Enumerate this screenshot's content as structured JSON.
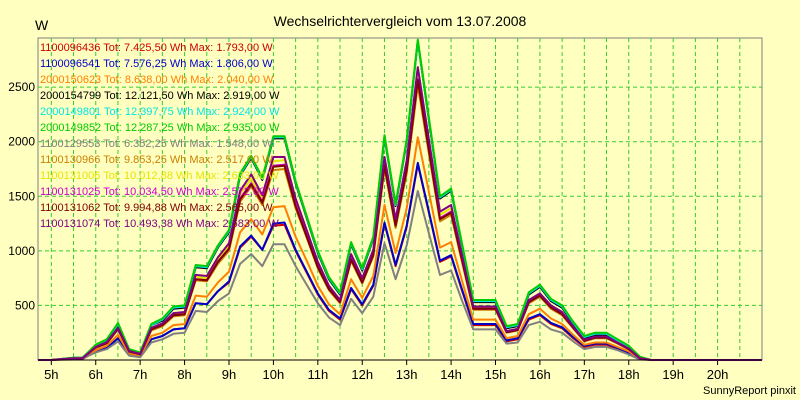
{
  "chart_data": {
    "type": "line",
    "title": "Wechselrichtervergleich vom 13.07.2008",
    "ylabel": "W",
    "xlabel": "",
    "footer": "SunnyReport pinxit",
    "x_tick_labels": [
      "5h",
      "6h",
      "7h",
      "8h",
      "9h",
      "10h",
      "11h",
      "12h",
      "13h",
      "14h",
      "15h",
      "16h",
      "17h",
      "18h",
      "19h",
      "20h"
    ],
    "y_ticks": [
      500,
      1000,
      1500,
      2000,
      2500
    ],
    "xlim": [
      4.7,
      21.0
    ],
    "ylim": [
      0,
      2950
    ],
    "grid": true,
    "legend_position": "top-left",
    "colors": {
      "background": "#ffffc0",
      "plot_border": "#808080",
      "grid": "#33cc33",
      "axis": "#000000"
    },
    "x": [
      4.7,
      5.0,
      5.5,
      5.7,
      6.0,
      6.25,
      6.5,
      6.75,
      7.0,
      7.25,
      7.5,
      7.75,
      8.0,
      8.25,
      8.5,
      8.75,
      9.0,
      9.25,
      9.5,
      9.75,
      10.0,
      10.25,
      10.5,
      10.75,
      11.0,
      11.25,
      11.5,
      11.75,
      12.0,
      12.25,
      12.5,
      12.75,
      13.0,
      13.25,
      13.5,
      13.75,
      14.0,
      14.25,
      14.5,
      14.75,
      15.0,
      15.25,
      15.5,
      15.75,
      16.0,
      16.25,
      16.5,
      16.75,
      17.0,
      17.25,
      17.5,
      17.75,
      18.0,
      18.25,
      18.5,
      18.75,
      19.0,
      19.25,
      19.5,
      19.75,
      20.0,
      20.25,
      20.5,
      20.75,
      21.0
    ],
    "series": [
      {
        "name": "1100096436 Tot: 7.425,50 Wh Max: 1.793,00 W",
        "color": "#cc0000",
        "values": [
          0,
          0,
          10,
          10,
          80,
          110,
          200,
          50,
          30,
          190,
          220,
          280,
          290,
          520,
          510,
          630,
          710,
          1030,
          1130,
          1010,
          1230,
          1240,
          1000,
          800,
          600,
          450,
          370,
          650,
          500,
          680,
          1250,
          860,
          1220,
          1793,
          1350,
          900,
          950,
          630,
          320,
          320,
          320,
          170,
          190,
          370,
          410,
          330,
          290,
          200,
          120,
          140,
          140,
          100,
          60,
          10,
          0,
          0,
          0,
          0,
          0,
          0,
          0,
          0,
          0,
          0,
          0
        ]
      },
      {
        "name": "1100096541 Tot: 7.576,25 Wh Max: 1.806,00 W",
        "color": "#0000cc",
        "values": [
          0,
          0,
          10,
          10,
          80,
          110,
          200,
          50,
          30,
          190,
          220,
          280,
          290,
          520,
          510,
          630,
          720,
          1040,
          1140,
          1010,
          1250,
          1260,
          1010,
          810,
          610,
          460,
          380,
          660,
          510,
          690,
          1260,
          870,
          1230,
          1806,
          1360,
          910,
          960,
          640,
          330,
          330,
          330,
          180,
          200,
          380,
          420,
          340,
          300,
          210,
          130,
          150,
          150,
          110,
          70,
          10,
          0,
          0,
          0,
          0,
          0,
          0,
          0,
          0,
          0,
          0,
          0
        ]
      },
      {
        "name": "2000150623 Tot: 8.638,00 Wh Max: 2.040,00 W",
        "color": "#ff8000",
        "values": [
          0,
          0,
          10,
          15,
          90,
          130,
          230,
          60,
          40,
          220,
          250,
          320,
          330,
          590,
          580,
          710,
          810,
          1170,
          1290,
          1150,
          1400,
          1410,
          1130,
          910,
          680,
          510,
          420,
          740,
          570,
          770,
          1420,
          980,
          1390,
          2040,
          1540,
          1030,
          1080,
          720,
          370,
          370,
          370,
          200,
          220,
          420,
          470,
          380,
          330,
          230,
          140,
          160,
          160,
          120,
          80,
          10,
          0,
          0,
          0,
          0,
          0,
          0,
          0,
          0,
          0,
          0,
          0
        ]
      },
      {
        "name": "2000154799 Tot: 12.121,50 Wh Max: 2.919,00 W",
        "color": "#000000",
        "values": [
          0,
          0,
          20,
          20,
          130,
          180,
          320,
          90,
          60,
          320,
          360,
          470,
          480,
          850,
          840,
          1030,
          1170,
          1690,
          1850,
          1650,
          2030,
          2030,
          1620,
          1300,
          980,
          740,
          600,
          1060,
          820,
          1110,
          2040,
          1410,
          2000,
          2919,
          2200,
          1480,
          1550,
          1040,
          530,
          530,
          530,
          290,
          310,
          600,
          670,
          540,
          480,
          330,
          200,
          230,
          230,
          170,
          110,
          20,
          0,
          0,
          0,
          0,
          0,
          0,
          0,
          0,
          0,
          0,
          0
        ]
      },
      {
        "name": "2000149801 Tot: 12.397,75 Wh Max: 2.924,00 W",
        "color": "#00e5e5",
        "values": [
          0,
          0,
          20,
          20,
          130,
          180,
          330,
          90,
          60,
          320,
          370,
          480,
          490,
          860,
          850,
          1040,
          1180,
          1700,
          1860,
          1660,
          2040,
          2040,
          1630,
          1310,
          990,
          750,
          610,
          1070,
          830,
          1120,
          2050,
          1420,
          2010,
          2924,
          2210,
          1490,
          1560,
          1050,
          540,
          540,
          540,
          300,
          320,
          610,
          680,
          550,
          490,
          340,
          210,
          240,
          240,
          180,
          120,
          20,
          0,
          0,
          0,
          0,
          0,
          0,
          0,
          0,
          0,
          0,
          0
        ]
      },
      {
        "name": "2000149852 Tot: 12.287,25 Wh Max: 2.935,00 W",
        "color": "#00cc00",
        "values": [
          0,
          0,
          20,
          20,
          140,
          190,
          340,
          100,
          70,
          330,
          380,
          490,
          500,
          870,
          860,
          1050,
          1190,
          1710,
          1870,
          1670,
          2050,
          2050,
          1640,
          1320,
          1000,
          760,
          620,
          1080,
          840,
          1130,
          2060,
          1430,
          2020,
          2935,
          2220,
          1500,
          1570,
          1060,
          550,
          550,
          550,
          310,
          330,
          620,
          690,
          560,
          500,
          350,
          220,
          250,
          250,
          190,
          130,
          30,
          0,
          0,
          0,
          0,
          0,
          0,
          0,
          0,
          0,
          0,
          0
        ]
      },
      {
        "name": "1100129553 Tot: 6.352,25 Wh Max: 1.548,00 W",
        "color": "#808080",
        "values": [
          0,
          0,
          5,
          10,
          70,
          100,
          170,
          40,
          25,
          160,
          190,
          240,
          250,
          450,
          440,
          540,
          610,
          880,
          970,
          860,
          1060,
          1060,
          860,
          690,
          520,
          390,
          320,
          560,
          430,
          580,
          1070,
          740,
          1050,
          1548,
          1160,
          780,
          820,
          540,
          280,
          280,
          280,
          150,
          160,
          320,
          350,
          280,
          250,
          170,
          100,
          120,
          120,
          90,
          50,
          5,
          0,
          0,
          0,
          0,
          0,
          0,
          0,
          0,
          0,
          0,
          0
        ]
      },
      {
        "name": "1100130966 Tot: 9.853,25 Wh Max: 2.517,00 W",
        "color": "#cc8000",
        "values": [
          0,
          0,
          15,
          15,
          110,
          150,
          280,
          75,
          50,
          270,
          310,
          400,
          410,
          730,
          720,
          880,
          1000,
          1450,
          1590,
          1420,
          1740,
          1750,
          1390,
          1120,
          840,
          640,
          520,
          910,
          700,
          950,
          1750,
          1210,
          1710,
          2517,
          1890,
          1270,
          1330,
          890,
          460,
          460,
          460,
          250,
          270,
          520,
          580,
          470,
          410,
          290,
          170,
          200,
          200,
          150,
          100,
          15,
          0,
          0,
          0,
          0,
          0,
          0,
          0,
          0,
          0,
          0,
          0
        ]
      },
      {
        "name": "1100131006 Tot: 10.012,88 Wh Max: 2.633,00 W",
        "color": "#e5e500",
        "values": [
          0,
          0,
          15,
          15,
          120,
          160,
          290,
          80,
          55,
          290,
          330,
          420,
          430,
          760,
          750,
          920,
          1040,
          1520,
          1660,
          1480,
          1820,
          1830,
          1450,
          1170,
          880,
          670,
          540,
          950,
          730,
          990,
          1830,
          1270,
          1790,
          2633,
          1980,
          1330,
          1390,
          930,
          480,
          480,
          480,
          260,
          280,
          540,
          600,
          490,
          430,
          300,
          180,
          210,
          210,
          160,
          100,
          15,
          0,
          0,
          0,
          0,
          0,
          0,
          0,
          0,
          0,
          0,
          0
        ]
      },
      {
        "name": "1100131025 Tot: 10.034,50 Wh Max: 2.572,00 W",
        "color": "#cc00cc",
        "values": [
          0,
          0,
          15,
          15,
          115,
          155,
          285,
          78,
          52,
          280,
          320,
          410,
          420,
          740,
          730,
          900,
          1020,
          1480,
          1620,
          1450,
          1780,
          1790,
          1420,
          1140,
          860,
          650,
          530,
          930,
          710,
          970,
          1790,
          1240,
          1750,
          2572,
          1930,
          1300,
          1360,
          910,
          470,
          470,
          470,
          255,
          275,
          530,
          590,
          480,
          420,
          295,
          175,
          205,
          205,
          155,
          100,
          15,
          0,
          0,
          0,
          0,
          0,
          0,
          0,
          0,
          0,
          0,
          0
        ]
      },
      {
        "name": "1100131062 Tot: 9.994,88 Wh Max: 2.565,00 W",
        "color": "#800000",
        "values": [
          0,
          0,
          15,
          15,
          115,
          155,
          285,
          78,
          52,
          280,
          320,
          410,
          420,
          740,
          730,
          900,
          1020,
          1470,
          1610,
          1440,
          1770,
          1780,
          1410,
          1130,
          850,
          650,
          530,
          920,
          710,
          960,
          1780,
          1230,
          1740,
          2565,
          1920,
          1290,
          1350,
          910,
          470,
          470,
          470,
          255,
          275,
          530,
          590,
          480,
          420,
          295,
          175,
          205,
          205,
          155,
          100,
          15,
          0,
          0,
          0,
          0,
          0,
          0,
          0,
          0,
          0,
          0,
          0
        ]
      },
      {
        "name": "1100131074 Tot: 10.493,38 Wh Max: 2.683,00 W",
        "color": "#800080",
        "values": [
          0,
          0,
          15,
          15,
          120,
          165,
          295,
          82,
          56,
          295,
          335,
          430,
          440,
          780,
          770,
          940,
          1070,
          1550,
          1700,
          1510,
          1860,
          1860,
          1480,
          1190,
          900,
          680,
          550,
          970,
          750,
          1010,
          1860,
          1290,
          1830,
          2683,
          2020,
          1360,
          1420,
          950,
          490,
          490,
          490,
          265,
          285,
          550,
          610,
          500,
          440,
          305,
          185,
          215,
          215,
          160,
          105,
          15,
          0,
          0,
          0,
          0,
          0,
          0,
          0,
          0,
          0,
          0,
          0
        ]
      }
    ]
  }
}
